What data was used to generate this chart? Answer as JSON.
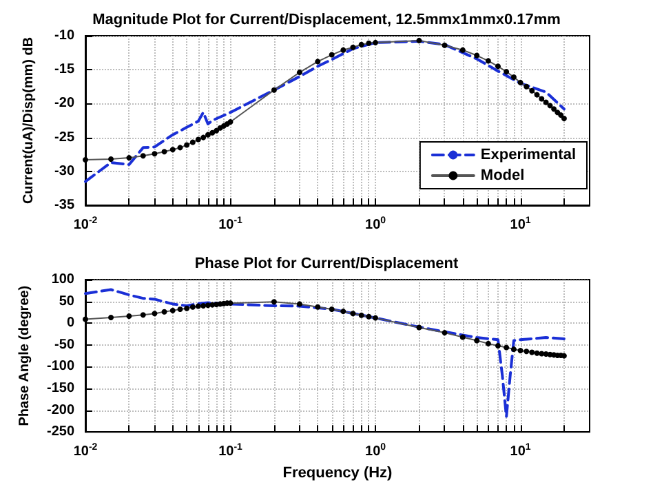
{
  "chart_data": [
    {
      "type": "line",
      "title": "Magnitude Plot for Current/Displacement, 12.5mmx1mmx0.17mm",
      "ylabel": "Current(uA)/Disp(mm) dB",
      "log": "x",
      "grid": true,
      "legend": "bottom right",
      "xlim": [
        0.01,
        30
      ],
      "ylim": [
        -35,
        -10
      ],
      "yticks": [
        -35,
        -30,
        -25,
        -20,
        -15,
        -10
      ],
      "xticks": [
        {
          "value": 0.01,
          "label": "10$^{-2}$"
        },
        {
          "value": 0.02,
          "label": null
        },
        {
          "value": 0.03,
          "label": null
        },
        {
          "value": 0.04,
          "label": null
        },
        {
          "value": 0.05,
          "label": null
        },
        {
          "value": 0.06,
          "label": null
        },
        {
          "value": 0.07,
          "label": null
        },
        {
          "value": 0.08,
          "label": null
        },
        {
          "value": 0.09,
          "label": null
        },
        {
          "value": 0.1,
          "label": "10$^{-1}$"
        },
        {
          "value": 0.2,
          "label": null
        },
        {
          "value": 0.3,
          "label": null
        },
        {
          "value": 0.4,
          "label": null
        },
        {
          "value": 0.5,
          "label": null
        },
        {
          "value": 0.6,
          "label": null
        },
        {
          "value": 0.7,
          "label": null
        },
        {
          "value": 0.8,
          "label": null
        },
        {
          "value": 0.9,
          "label": null
        },
        {
          "value": 1,
          "label": "10$^{0}$"
        },
        {
          "value": 2,
          "label": null
        },
        {
          "value": 3,
          "label": null
        },
        {
          "value": 4,
          "label": null
        },
        {
          "value": 5,
          "label": null
        },
        {
          "value": 6,
          "label": null
        },
        {
          "value": 7,
          "label": null
        },
        {
          "value": 8,
          "label": null
        },
        {
          "value": 9,
          "label": null
        },
        {
          "value": 10,
          "label": "10$^{1}$"
        },
        {
          "value": 20,
          "label": null
        }
      ],
      "series": [
        {
          "name": "Experimental",
          "color": "#1a2fd6",
          "line_style": "dashed",
          "marker": "none",
          "x": [
            0.01,
            0.015,
            0.02,
            0.025,
            0.03,
            0.04,
            0.05,
            0.06,
            0.065,
            0.07,
            0.075,
            0.1,
            0.2,
            0.3,
            0.4,
            0.5,
            0.7,
            1,
            2,
            3,
            5,
            7,
            10,
            15,
            20
          ],
          "values": [
            -31.5,
            -28.7,
            -29.0,
            -26.5,
            -26.4,
            -24.6,
            -23.5,
            -22.6,
            -21.3,
            -23.0,
            -22.5,
            -21.3,
            -18.0,
            -16.0,
            -14.5,
            -13.5,
            -11.9,
            -11.0,
            -10.8,
            -11.3,
            -13.4,
            -15.2,
            -17.0,
            -18.3,
            -20.8
          ]
        },
        {
          "name": "Model",
          "color": "#000000",
          "line_style": "solid",
          "marker": "circle",
          "x": [
            0.01,
            0.015,
            0.02,
            0.025,
            0.03,
            0.035,
            0.04,
            0.045,
            0.05,
            0.055,
            0.06,
            0.065,
            0.07,
            0.075,
            0.08,
            0.085,
            0.09,
            0.095,
            0.1,
            0.2,
            0.3,
            0.4,
            0.5,
            0.6,
            0.7,
            0.8,
            0.9,
            1,
            2,
            3,
            4,
            5,
            6,
            7,
            8,
            9,
            10,
            11,
            12,
            13,
            14,
            15,
            16,
            17,
            18,
            19,
            20
          ],
          "values": [
            -28.3,
            -28.2,
            -28.0,
            -27.7,
            -27.4,
            -27.1,
            -26.8,
            -26.5,
            -26.1,
            -25.7,
            -25.3,
            -25.0,
            -24.6,
            -24.3,
            -24.0,
            -23.6,
            -23.3,
            -23.0,
            -22.7,
            -18.0,
            -15.4,
            -13.8,
            -12.8,
            -12.1,
            -11.7,
            -11.3,
            -11.1,
            -11.0,
            -10.7,
            -11.4,
            -12.1,
            -12.9,
            -13.7,
            -14.5,
            -15.3,
            -16.1,
            -16.9,
            -17.5,
            -18.1,
            -18.7,
            -19.3,
            -19.8,
            -20.3,
            -20.8,
            -21.3,
            -21.7,
            -22.2
          ]
        }
      ]
    },
    {
      "type": "line",
      "title": "Phase Plot for Current/Displacement",
      "xlabel": "Frequency (Hz)",
      "ylabel": "Phase Angle (degree)",
      "log": "x",
      "grid": true,
      "xlim": [
        0.01,
        30
      ],
      "ylim": [
        -250,
        100
      ],
      "yticks": [
        -250,
        -200,
        -150,
        -100,
        -50,
        0,
        50,
        100
      ],
      "xticks": [
        {
          "value": 0.01,
          "label": "10$^{-2}$"
        },
        {
          "value": 0.02,
          "label": null
        },
        {
          "value": 0.03,
          "label": null
        },
        {
          "value": 0.04,
          "label": null
        },
        {
          "value": 0.05,
          "label": null
        },
        {
          "value": 0.06,
          "label": null
        },
        {
          "value": 0.07,
          "label": null
        },
        {
          "value": 0.08,
          "label": null
        },
        {
          "value": 0.09,
          "label": null
        },
        {
          "value": 0.1,
          "label": "10$^{-1}$"
        },
        {
          "value": 0.2,
          "label": null
        },
        {
          "value": 0.3,
          "label": null
        },
        {
          "value": 0.4,
          "label": null
        },
        {
          "value": 0.5,
          "label": null
        },
        {
          "value": 0.6,
          "label": null
        },
        {
          "value": 0.7,
          "label": null
        },
        {
          "value": 0.8,
          "label": null
        },
        {
          "value": 0.9,
          "label": null
        },
        {
          "value": 1,
          "label": "10$^{0}$"
        },
        {
          "value": 2,
          "label": null
        },
        {
          "value": 3,
          "label": null
        },
        {
          "value": 4,
          "label": null
        },
        {
          "value": 5,
          "label": null
        },
        {
          "value": 6,
          "label": null
        },
        {
          "value": 7,
          "label": null
        },
        {
          "value": 8,
          "label": null
        },
        {
          "value": 9,
          "label": null
        },
        {
          "value": 10,
          "label": "10$^{1}$"
        },
        {
          "value": 20,
          "label": null
        }
      ],
      "series": [
        {
          "color": "#1a2fd6",
          "line_style": "dashed",
          "marker": "none",
          "x": [
            0.01,
            0.015,
            0.02,
            0.025,
            0.03,
            0.04,
            0.05,
            0.06,
            0.07,
            0.1,
            0.2,
            0.3,
            0.5,
            1,
            2,
            3,
            5,
            7,
            7.5,
            8,
            8.5,
            9,
            10,
            15,
            20
          ],
          "values": [
            68,
            77,
            65,
            57,
            55,
            44,
            40,
            45,
            47,
            44,
            40,
            39,
            32,
            12,
            -9,
            -20,
            -33,
            -38,
            -120,
            -215,
            -120,
            -40,
            -38,
            -33,
            -36
          ]
        },
        {
          "color": "#000000",
          "line_style": "solid",
          "marker": "circle",
          "x": [
            0.01,
            0.015,
            0.02,
            0.025,
            0.03,
            0.035,
            0.04,
            0.045,
            0.05,
            0.055,
            0.06,
            0.065,
            0.07,
            0.075,
            0.08,
            0.085,
            0.09,
            0.095,
            0.1,
            0.2,
            0.3,
            0.4,
            0.5,
            0.6,
            0.7,
            0.8,
            0.9,
            1,
            2,
            3,
            4,
            5,
            6,
            7,
            8,
            9,
            10,
            11,
            12,
            13,
            14,
            15,
            16,
            17,
            18,
            19,
            20
          ],
          "values": [
            9,
            13,
            16,
            19,
            22,
            26,
            29,
            32,
            34,
            37,
            39,
            40,
            41,
            42,
            43,
            44,
            45,
            46,
            46,
            49,
            44,
            37,
            32,
            27,
            22,
            18,
            15,
            12,
            -10,
            -22,
            -32,
            -40,
            -47,
            -52,
            -56,
            -60,
            -63,
            -65,
            -67,
            -69,
            -70,
            -71,
            -72,
            -73,
            -74,
            -74,
            -75
          ]
        }
      ]
    }
  ]
}
